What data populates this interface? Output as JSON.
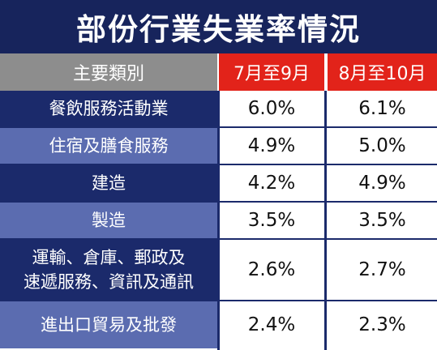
{
  "chart_data": {
    "type": "table",
    "title": "部份行業失業率情況",
    "columns": [
      "主要類別",
      "7月至9月",
      "8月至10月"
    ],
    "rows": [
      {
        "category": "餐飲服務活動業",
        "v1": "6.0%",
        "v2": "6.1%"
      },
      {
        "category": "住宿及膳食服務",
        "v1": "4.9%",
        "v2": "5.0%"
      },
      {
        "category": "建造",
        "v1": "4.2%",
        "v2": "4.9%"
      },
      {
        "category": "製造",
        "v1": "3.5%",
        "v2": "3.5%"
      },
      {
        "category": "運輸、倉庫、郵政及\n速遞服務、資訊及通訊",
        "v1": "2.6%",
        "v2": "2.7%"
      },
      {
        "category": "進出口貿易及批發",
        "v1": "2.4%",
        "v2": "2.3%"
      }
    ]
  },
  "colors": {
    "title_bg": "#17245c",
    "header_gray": "#8d8d8d",
    "header_red": "#e2231a",
    "row_dark": "#1b2a6b",
    "row_light": "#5b6cb0"
  }
}
